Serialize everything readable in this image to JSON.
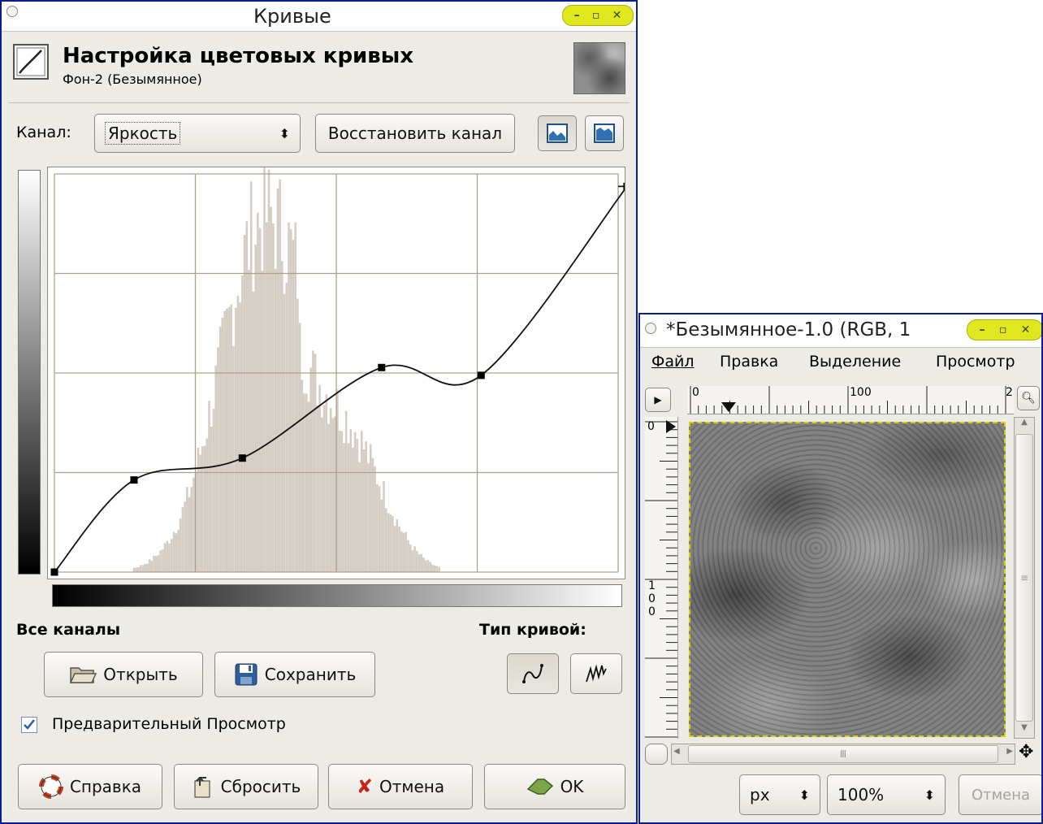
{
  "curves_window": {
    "title": "Кривые",
    "header_title": "Настройка цветовых кривых",
    "header_subtitle": "Фон-2 (Безымянное)",
    "channel_label": "Канал:",
    "channel_value": "Яркость",
    "reset_channel_label": "Восстановить канал",
    "all_channels_label": "Все каналы",
    "curve_type_label": "Тип кривой:",
    "open_label": "Открыть",
    "save_label": "Сохранить",
    "preview_label": "Предварительный Просмотр",
    "preview_checked": true,
    "help_label": "Справка",
    "reset_label": "Сбросить",
    "cancel_label": "Отмена",
    "ok_label": "OK"
  },
  "curve": {
    "points": [
      [
        0,
        0
      ],
      [
        36,
        59
      ],
      [
        85,
        73
      ],
      [
        148,
        131
      ],
      [
        193,
        126
      ],
      [
        259,
        247
      ]
    ]
  },
  "image_window": {
    "title": "*Безымянное-1.0 (RGB, 1",
    "menu": [
      "Файл",
      "Правка",
      "Выделение",
      "Просмотр"
    ],
    "ruler_top_labels": [
      "0",
      "100",
      "2"
    ],
    "ruler_left_labels": [
      "0",
      "1\n0\n0"
    ],
    "unit": "px",
    "zoom": "100%",
    "cancel_label": "Отмена"
  },
  "colors": {
    "window_border": "#0a1e8c",
    "window_controls": "#e0e71e",
    "panel_bg": "#edebe6",
    "histogram": "#d4cdc4",
    "grid": "#b0a08c"
  }
}
